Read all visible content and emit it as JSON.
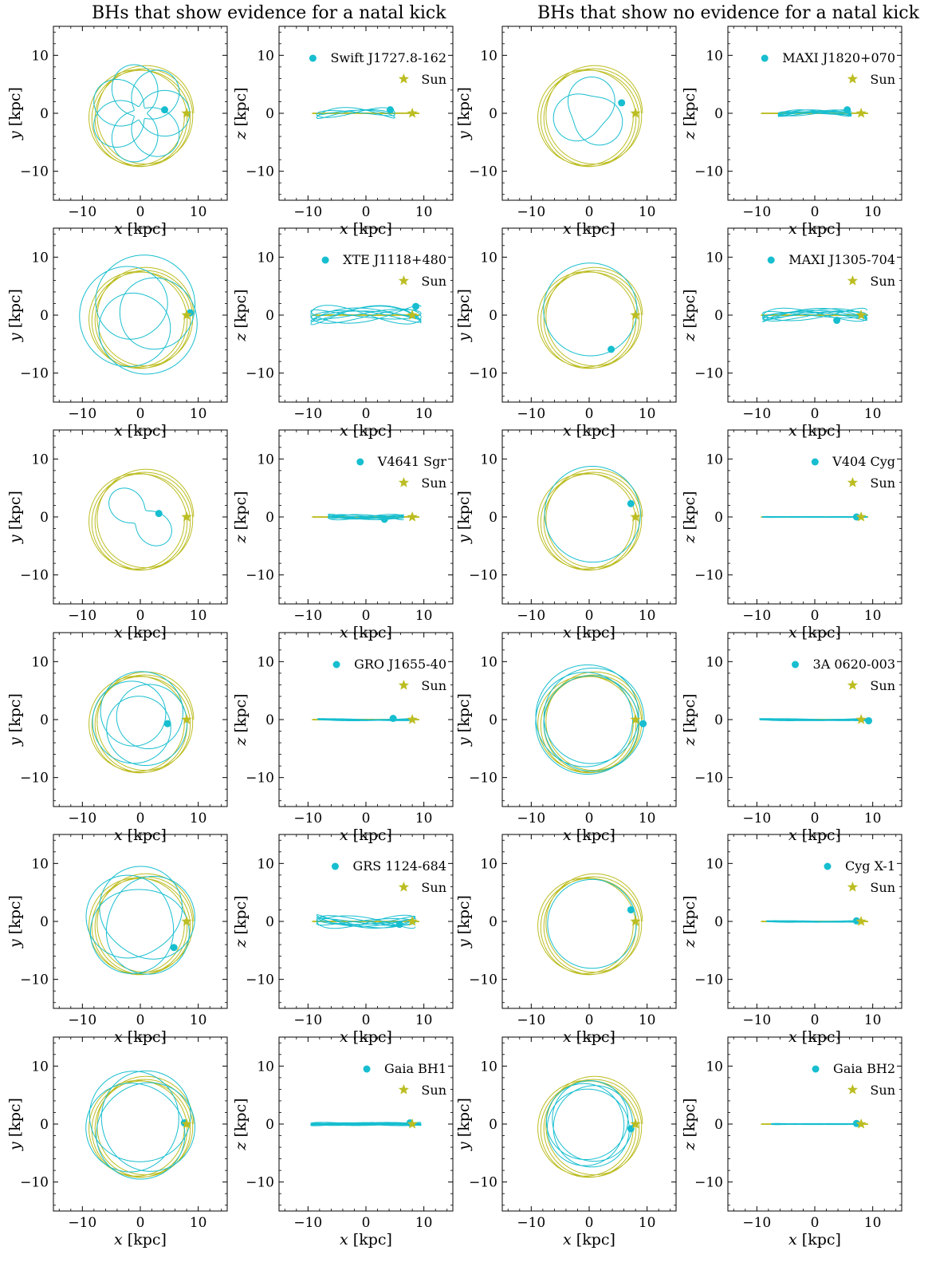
{
  "column_titles": {
    "left": "BHs that show evidence for a natal kick",
    "right": "BHs that show no evidence for a natal kick"
  },
  "colors": {
    "bh": "#17becf",
    "sun": "#bcbd22"
  },
  "axes_common": {
    "xlim": [
      -15,
      15
    ],
    "ylim": [
      -15,
      15
    ],
    "ticks": [
      -10,
      0,
      10
    ],
    "tick_labels": [
      "−10",
      "0",
      "10"
    ],
    "xlabel_var": "x",
    "ylabel_var_xy": "y",
    "ylabel_var_xz": "z",
    "unit": " [kpc]"
  },
  "legend_sun_label": "Sun",
  "chart_data": [
    {
      "type": "line",
      "name": "Swift J1727.8-162",
      "column": "left",
      "row": 0,
      "sun": {
        "x": 8.0,
        "y": 0.0,
        "z": 0.0
      },
      "bh": {
        "x": 4.2,
        "y": 0.6,
        "z": 0.6
      },
      "orbit_xy": {
        "r_peri": 1.2,
        "r_apo": 8.5,
        "petals": 7
      },
      "orbit_xz": {
        "x_range": [
          -8.5,
          5.0
        ],
        "z_amp": 1.0
      }
    },
    {
      "type": "line",
      "name": "XTE J1118+480",
      "column": "left",
      "row": 1,
      "sun": {
        "x": 8.0,
        "y": 0.0,
        "z": 0.0
      },
      "bh": {
        "x": 8.6,
        "y": 0.4,
        "z": 1.5
      },
      "orbit_xy": {
        "r_peri": 3.5,
        "r_apo": 10.5,
        "petals": 3
      },
      "orbit_xz": {
        "x_range": [
          -9.5,
          9.5
        ],
        "z_amp": 1.7
      }
    },
    {
      "type": "line",
      "name": "V4641 Sgr",
      "column": "left",
      "row": 2,
      "sun": {
        "x": 8.0,
        "y": 0.0,
        "z": 0.0
      },
      "bh": {
        "x": 3.2,
        "y": 0.6,
        "z": -0.4
      },
      "orbit_xy": {
        "r_peri": 1.5,
        "r_apo": 6.3,
        "petals": 8
      },
      "orbit_xz": {
        "x_range": [
          -6.5,
          6.5
        ],
        "z_amp": 0.5
      }
    },
    {
      "type": "line",
      "name": "GRO J1655-40",
      "column": "left",
      "row": 3,
      "sun": {
        "x": 8.0,
        "y": 0.0,
        "z": 0.0
      },
      "bh": {
        "x": 4.7,
        "y": -0.7,
        "z": 0.2
      },
      "orbit_xy": {
        "r_peri": 4.0,
        "r_apo": 8.3,
        "petals": 3
      },
      "orbit_xz": {
        "x_range": [
          -8.3,
          8.3
        ],
        "z_amp": 0.2
      }
    },
    {
      "type": "line",
      "name": "GRS 1124-684",
      "column": "left",
      "row": 4,
      "sun": {
        "x": 8.0,
        "y": 0.0,
        "z": 0.0
      },
      "bh": {
        "x": 5.8,
        "y": -4.5,
        "z": -0.5
      },
      "orbit_xy": {
        "r_peri": 5.5,
        "r_apo": 9.5,
        "petals": 5
      },
      "orbit_xz": {
        "x_range": [
          -8.5,
          8.5
        ],
        "z_amp": 1.2
      }
    },
    {
      "type": "line",
      "name": "Gaia BH1",
      "column": "left",
      "row": 5,
      "sun": {
        "x": 8.0,
        "y": 0.0,
        "z": 0.0
      },
      "bh": {
        "x": 7.6,
        "y": 0.2,
        "z": 0.2
      },
      "orbit_xy": {
        "r_peri": 6.5,
        "r_apo": 9.5,
        "petals": 5
      },
      "orbit_xz": {
        "x_range": [
          -9.5,
          9.5
        ],
        "z_amp": 0.3
      }
    },
    {
      "type": "line",
      "name": "MAXI J1820+070",
      "column": "right",
      "row": 0,
      "sun": {
        "x": 8.0,
        "y": 0.0,
        "z": 0.0
      },
      "bh": {
        "x": 5.6,
        "y": 1.8,
        "z": 0.6
      },
      "orbit_xy": {
        "r_peri": 3.0,
        "r_apo": 6.3,
        "petals": 6
      },
      "orbit_xz": {
        "x_range": [
          -6.3,
          6.3
        ],
        "z_amp": 0.6
      }
    },
    {
      "type": "line",
      "name": "MAXI J1305-704",
      "column": "right",
      "row": 1,
      "sun": {
        "x": 8.0,
        "y": 0.0,
        "z": 0.0
      },
      "bh": {
        "x": 3.8,
        "y": -5.9,
        "z": -0.9
      },
      "orbit_xy": {
        "r_peri": 7.0,
        "r_apo": 9.0,
        "petals": 4
      },
      "orbit_xz": {
        "x_range": [
          -9.0,
          9.0
        ],
        "z_amp": 1.2
      }
    },
    {
      "type": "line",
      "name": "V404 Cyg",
      "column": "right",
      "row": 2,
      "sun": {
        "x": 8.0,
        "y": 0.0,
        "z": 0.0
      },
      "bh": {
        "x": 7.2,
        "y": 2.3,
        "z": 0.0
      },
      "orbit_xy": {
        "r_peri": 7.5,
        "r_apo": 9.0,
        "petals": 4
      },
      "orbit_xz": {
        "x_range": [
          -9.0,
          9.0
        ],
        "z_amp": 0.08
      }
    },
    {
      "type": "line",
      "name": "3A 0620-003",
      "column": "right",
      "row": 3,
      "sun": {
        "x": 8.0,
        "y": 0.0,
        "z": 0.0
      },
      "bh": {
        "x": 9.3,
        "y": -0.7,
        "z": -0.2
      },
      "orbit_xy": {
        "r_peri": 7.5,
        "r_apo": 9.5,
        "petals": 3
      },
      "orbit_xz": {
        "x_range": [
          -9.5,
          9.5
        ],
        "z_amp": 0.2
      }
    },
    {
      "type": "line",
      "name": "Cyg X-1",
      "column": "right",
      "row": 4,
      "sun": {
        "x": 8.0,
        "y": 0.0,
        "z": 0.0
      },
      "bh": {
        "x": 7.2,
        "y": 2.0,
        "z": 0.1
      },
      "orbit_xy": {
        "r_peri": 7.0,
        "r_apo": 8.3,
        "petals": 4
      },
      "orbit_xz": {
        "x_range": [
          -8.3,
          8.3
        ],
        "z_amp": 0.15
      }
    },
    {
      "type": "line",
      "name": "Gaia BH2",
      "column": "right",
      "row": 5,
      "sun": {
        "x": 8.0,
        "y": 0.0,
        "z": 0.0
      },
      "bh": {
        "x": 7.2,
        "y": -0.8,
        "z": 0.1
      },
      "orbit_xy": {
        "r_peri": 6.0,
        "r_apo": 7.5,
        "petals": 5
      },
      "orbit_xz": {
        "x_range": [
          -7.5,
          7.5
        ],
        "z_amp": 0.1
      }
    }
  ]
}
